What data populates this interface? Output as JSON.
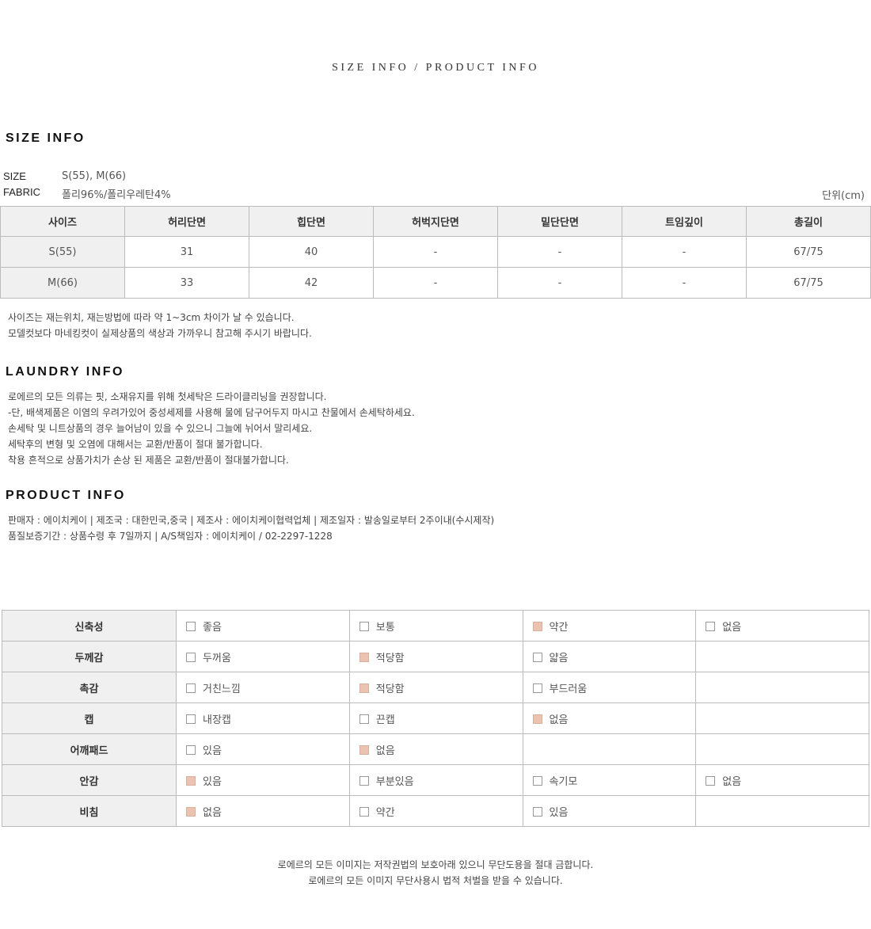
{
  "title": "SIZE INFO / PRODUCT INFO",
  "size_info": {
    "heading": "SIZE INFO",
    "size_label": "SIZE",
    "size_value": "S(55), M(66)",
    "fabric_label": "FABRIC",
    "fabric_value": "폴리96%/폴리우레탄4%",
    "unit": "단위(cm)",
    "headers": [
      "사이즈",
      "허리단면",
      "힙단면",
      "허벅지단면",
      "밑단단면",
      "트임깊이",
      "총길이"
    ],
    "rows": [
      [
        "S(55)",
        "31",
        "40",
        "-",
        "-",
        "-",
        "67/75"
      ],
      [
        "M(66)",
        "33",
        "42",
        "-",
        "-",
        "-",
        "67/75"
      ]
    ],
    "notes": [
      "사이즈는 재는위치, 재는방법에 따라 약 1~3cm 차이가 날 수 있습니다.",
      "모델컷보다 마네킹컷이 실제상품의 색상과 가까우니 참고해 주시기 바랍니다."
    ]
  },
  "laundry": {
    "heading": "LAUNDRY INFO",
    "lines": [
      "로에르의 모든 의류는 핏, 소재유지를 위해 첫세탁은 드라이클리닝을 권장합니다.",
      "-단, 배색제품은 이염의 우려가있어 중성세제를 사용해 물에 담구어두지 마시고 찬물에서 손세탁하세요.",
      "손세탁 및 니트상품의 경우 늘어남이 있을 수 있으니 그늘에 뉘어서 말리세요.",
      "세탁후의 변형 및 오염에 대해서는 교환/반품이 절대 불가합니다.",
      "착용 흔적으로 상품가치가 손상 된 제품은 교환/반품이 절대불가합니다."
    ]
  },
  "product": {
    "heading": "PRODUCT INFO",
    "lines": [
      "판매자 : 에이치케이 | 제조국 : 대한민국,중국 | 제조사 : 에이치케이협력업체 | 제조일자 : 발송일로부터 2주이내(수시제작)",
      "품질보증기간 : 상품수령 후 7일까지 | A/S책임자 : 에이치케이 / 02-2297-1228"
    ]
  },
  "attributes": {
    "selected_color": "#ecc3b0",
    "rows": [
      {
        "label": "신축성",
        "options": [
          {
            "text": "좋음",
            "checked": false
          },
          {
            "text": "보통",
            "checked": false
          },
          {
            "text": "약간",
            "checked": true
          },
          {
            "text": "없음",
            "checked": false
          }
        ]
      },
      {
        "label": "두께감",
        "options": [
          {
            "text": "두꺼움",
            "checked": false
          },
          {
            "text": "적당함",
            "checked": true
          },
          {
            "text": "얇음",
            "checked": false
          }
        ]
      },
      {
        "label": "촉감",
        "options": [
          {
            "text": "거친느낌",
            "checked": false
          },
          {
            "text": "적당함",
            "checked": true
          },
          {
            "text": "부드러움",
            "checked": false
          }
        ]
      },
      {
        "label": "캡",
        "options": [
          {
            "text": "내장캡",
            "checked": false
          },
          {
            "text": "끈캡",
            "checked": false
          },
          {
            "text": "없음",
            "checked": true
          }
        ]
      },
      {
        "label": "어깨패드",
        "options": [
          {
            "text": "있음",
            "checked": false
          },
          {
            "text": "없음",
            "checked": true
          }
        ]
      },
      {
        "label": "안감",
        "options": [
          {
            "text": "있음",
            "checked": true
          },
          {
            "text": "부분있음",
            "checked": false
          },
          {
            "text": "속기모",
            "checked": false
          },
          {
            "text": "없음",
            "checked": false
          }
        ]
      },
      {
        "label": "비침",
        "options": [
          {
            "text": "없음",
            "checked": true
          },
          {
            "text": "약간",
            "checked": false
          },
          {
            "text": "있음",
            "checked": false
          }
        ]
      }
    ]
  },
  "footer": [
    "로에르의 모든 이미지는 저작권법의 보호아래 있으니 무단도용을 절대 금합니다.",
    "로에르의 모든 이미지 무단사용시 법적 처벌을 받을 수 있습니다."
  ]
}
